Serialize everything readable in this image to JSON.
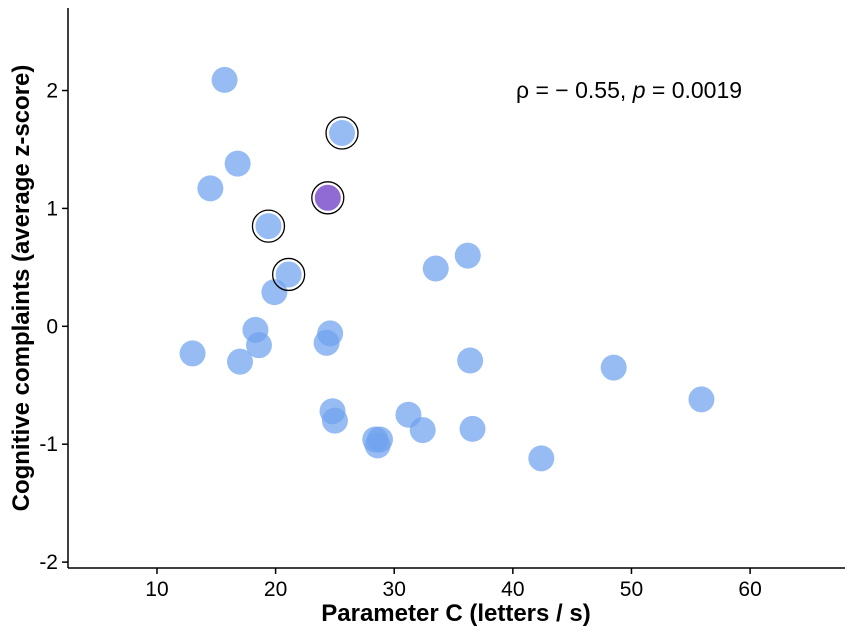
{
  "chart_data": {
    "type": "scatter",
    "title": "",
    "xlabel": "Parameter C (letters / s)",
    "ylabel": "Cognitive complaints (average z-score)",
    "xlim": [
      2.5,
      68
    ],
    "ylim": [
      -2.05,
      2.7
    ],
    "xticks": [
      10,
      20,
      30,
      40,
      50,
      60
    ],
    "yticks": [
      -2,
      -1,
      0,
      1,
      2
    ],
    "grid": false,
    "annotation": {
      "rho_symbol": "ρ",
      "rho_text": " = − 0.55, ",
      "p_symbol": "p",
      "p_text": " = 0.0019"
    },
    "point_color": "#6fa2ef",
    "highlight_color": "#8a63d2",
    "points": [
      {
        "x": 15.7,
        "y": 2.09
      },
      {
        "x": 25.6,
        "y": 1.64,
        "circled": true
      },
      {
        "x": 16.8,
        "y": 1.38
      },
      {
        "x": 14.5,
        "y": 1.17
      },
      {
        "x": 24.4,
        "y": 1.09,
        "circled": true,
        "highlight": true
      },
      {
        "x": 19.4,
        "y": 0.85,
        "circled": true
      },
      {
        "x": 21.1,
        "y": 0.44,
        "circled": true
      },
      {
        "x": 19.9,
        "y": 0.29
      },
      {
        "x": 33.5,
        "y": 0.49
      },
      {
        "x": 36.2,
        "y": 0.6
      },
      {
        "x": 18.3,
        "y": -0.03
      },
      {
        "x": 18.6,
        "y": -0.16
      },
      {
        "x": 13.0,
        "y": -0.23
      },
      {
        "x": 17.0,
        "y": -0.3
      },
      {
        "x": 24.6,
        "y": -0.06
      },
      {
        "x": 24.3,
        "y": -0.14
      },
      {
        "x": 36.4,
        "y": -0.29
      },
      {
        "x": 48.5,
        "y": -0.35
      },
      {
        "x": 55.9,
        "y": -0.62
      },
      {
        "x": 24.8,
        "y": -0.72
      },
      {
        "x": 25.0,
        "y": -0.8
      },
      {
        "x": 31.2,
        "y": -0.75
      },
      {
        "x": 32.4,
        "y": -0.88
      },
      {
        "x": 36.6,
        "y": -0.87
      },
      {
        "x": 28.4,
        "y": -0.96
      },
      {
        "x": 28.8,
        "y": -0.96
      },
      {
        "x": 28.6,
        "y": -1.01
      },
      {
        "x": 42.4,
        "y": -1.12
      }
    ]
  }
}
